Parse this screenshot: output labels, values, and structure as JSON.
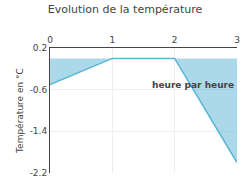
{
  "chart_data": {
    "type": "area",
    "title": "Evolution de la température",
    "ylabel": "Température en °C",
    "x": [
      0,
      1,
      2,
      3
    ],
    "values": [
      -0.5,
      0.0,
      0.0,
      -2.0
    ],
    "color": "#5ab4d4",
    "xlim": [
      0,
      3
    ],
    "ylim": [
      -2.2,
      0.2
    ],
    "xticks": [
      0,
      1,
      2,
      3
    ],
    "yticks": [
      0.2,
      -0.6,
      -1.4,
      -2.2
    ],
    "grid": true,
    "annotations": [
      {
        "text": "heure par heure",
        "x": 2.3,
        "y": -0.38
      }
    ]
  }
}
